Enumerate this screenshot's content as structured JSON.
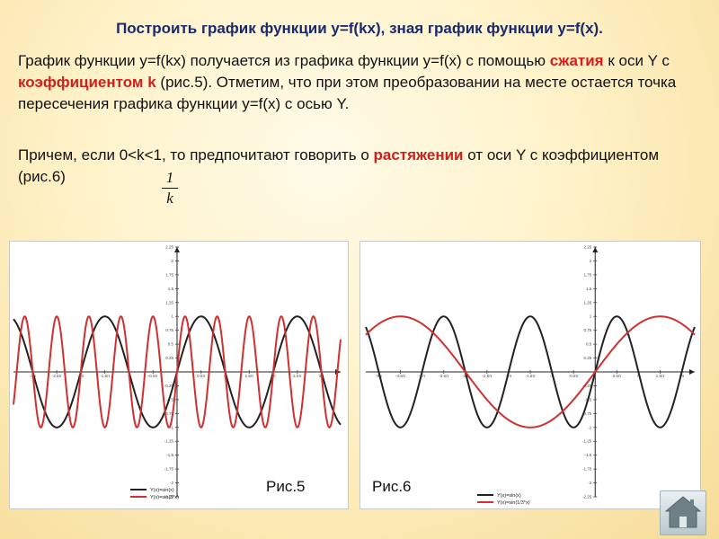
{
  "title": "Построить график функции у=f(kx), зная график функции y=f(x).",
  "para1": {
    "t1": "График функции y=f(kx) получается из графика функции у=f(x) с помощью",
    "h1": "сжатия",
    "t2": " к оси Y с ",
    "h2": "коэффициентом k",
    "t3": " (рис.5). Отметим, что при этом преобразовании на месте остается точка пересечения графика функции y=f(x) с осью Y."
  },
  "para2": {
    "t1": "Причем, если 0<k<1, то предпочитают говорить о ",
    "h1": "растяжении",
    "t2": " от оси Y с коэффициентом",
    "t3": "(рис.6)"
  },
  "fraction": {
    "numerator": "1",
    "denominator": "k"
  },
  "colors": {
    "title": "#1a2a6a",
    "highlight": "#d0201c",
    "curve_base": "#222222",
    "curve_transformed": "#d03030"
  },
  "figures": [
    {
      "label": "Рис.5",
      "legend": [
        "Y(x)=sin(x)",
        "Y(x)=sin(3*x)"
      ],
      "x_ticks": [
        "-3π",
        "-2.5π",
        "-2π",
        "-1.5π",
        "-π",
        "-0.5π",
        "0.5π",
        "π",
        "1.5π",
        "2π",
        "2.5π",
        "3π"
      ],
      "y_ticks": [
        "2.25",
        "2",
        "1.75",
        "1.5",
        "1.25",
        "1",
        "0.75",
        "0.5",
        "0.25",
        "-0.25",
        "-0.5",
        "-0.75",
        "-1",
        "-1.25",
        "-1.5",
        "-1.75",
        "-2",
        "-2.25"
      ],
      "chart_data": {
        "type": "line",
        "xlim": [
          -3.4,
          3.4
        ],
        "ylim": [
          -2.25,
          2.25
        ],
        "series": [
          {
            "name": "Y(x)=sin(x)",
            "function": "sin(x)",
            "color": "#222222"
          },
          {
            "name": "Y(x)=sin(3*x)",
            "function": "sin(3*x)",
            "color": "#d03030"
          }
        ]
      }
    },
    {
      "label": "Рис.6",
      "legend": [
        "Y(x)=sin(x)",
        "Y(x)=sin(1/3*x)"
      ],
      "x_ticks": [
        "-5π",
        "-4.5π",
        "-4π",
        "-3.5π",
        "-3π",
        "-2.5π",
        "-2π",
        "-1.5π",
        "-π",
        "-0.5π",
        "0.5π",
        "π",
        "1.5π",
        "2π"
      ],
      "y_ticks": [
        "2.25",
        "2",
        "1.75",
        "1.5",
        "1.25",
        "1",
        "0.75",
        "0.5",
        "0.25",
        "-0.25",
        "-0.5",
        "-0.75",
        "-1",
        "-1.25",
        "-1.5",
        "-1.75",
        "-2",
        "-2.25"
      ],
      "chart_data": {
        "type": "line",
        "xlim": [
          -5.3,
          2.3
        ],
        "ylim": [
          -2.25,
          2.25
        ],
        "series": [
          {
            "name": "Y(x)=sin(x)",
            "function": "sin(x)",
            "color": "#222222"
          },
          {
            "name": "Y(x)=sin(1/3*x)",
            "function": "sin(x/3)",
            "color": "#d03030"
          }
        ]
      }
    }
  ],
  "home_icon": "home-icon"
}
